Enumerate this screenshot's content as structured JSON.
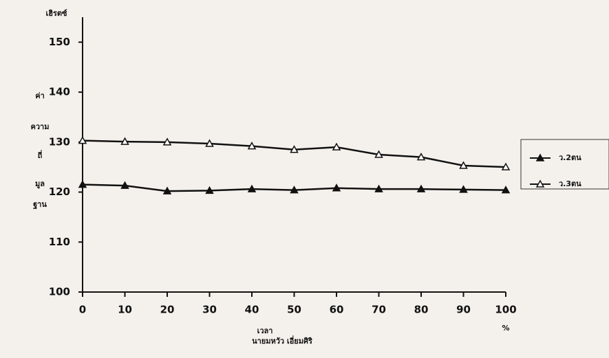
{
  "chart_data": {
    "type": "line",
    "y_unit": "เฮิรตซ์",
    "y_label": [
      "ค่า",
      "ความ",
      "ถี่",
      "มูล",
      "ฐาน"
    ],
    "x_label": "เวลา",
    "x_unit": "%",
    "note": "นายมหวัว เอี่ยมศิริ",
    "x": [
      0,
      10,
      20,
      30,
      40,
      50,
      60,
      70,
      80,
      90,
      100
    ],
    "xlim": [
      0,
      100
    ],
    "xticks": [
      0,
      10,
      20,
      30,
      40,
      50,
      60,
      70,
      80,
      90,
      100
    ],
    "ylim": [
      100,
      155
    ],
    "yticks": [
      100,
      110,
      120,
      130,
      140,
      150
    ],
    "legend": "right",
    "series": [
      {
        "name": "ว.2ตน",
        "color": "#111111",
        "filled": true,
        "values": [
          121.5,
          121.3,
          120.2,
          120.3,
          120.6,
          120.4,
          120.8,
          120.6,
          120.6,
          120.5,
          120.4
        ]
      },
      {
        "name": "ว.3ตน",
        "color": "#111111",
        "filled": false,
        "values": [
          130.3,
          130.1,
          130.0,
          129.7,
          129.2,
          128.5,
          129.0,
          127.5,
          127.0,
          125.3,
          125.0
        ]
      }
    ]
  }
}
